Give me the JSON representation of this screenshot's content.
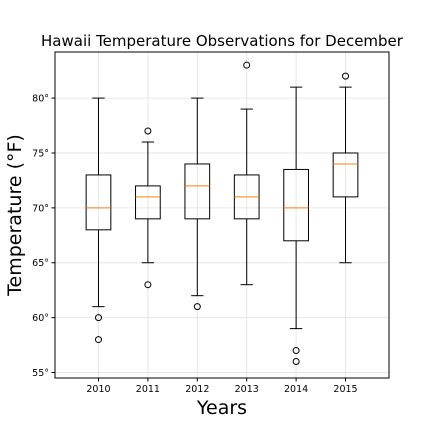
{
  "chart_data": {
    "type": "box",
    "title": "Hawaii Temperature Observations for December",
    "xlabel": "Years",
    "ylabel": "Temperature (°F)",
    "ylim": [
      54.5,
      84.2
    ],
    "grid": true,
    "y_ticks": [
      {
        "value": 55,
        "label": "55°"
      },
      {
        "value": 60,
        "label": "60°"
      },
      {
        "value": 65,
        "label": "65°"
      },
      {
        "value": 70,
        "label": "70°"
      },
      {
        "value": 75,
        "label": "75°"
      },
      {
        "value": 80,
        "label": "80°"
      }
    ],
    "categories": [
      "2010",
      "2011",
      "2012",
      "2013",
      "2014",
      "2015"
    ],
    "boxes": [
      {
        "label": "2010",
        "whislo": 61,
        "q1": 68,
        "med": 70,
        "q3": 73,
        "whishi": 80,
        "fliers": [
          60,
          58
        ]
      },
      {
        "label": "2011",
        "whislo": 65,
        "q1": 69,
        "med": 71,
        "q3": 72,
        "whishi": 76,
        "fliers": [
          77,
          63
        ]
      },
      {
        "label": "2012",
        "whislo": 62,
        "q1": 69,
        "med": 72,
        "q3": 74,
        "whishi": 80,
        "fliers": [
          61
        ]
      },
      {
        "label": "2013",
        "whislo": 63,
        "q1": 69,
        "med": 71,
        "q3": 73,
        "whishi": 79,
        "fliers": [
          83
        ]
      },
      {
        "label": "2014",
        "whislo": 59,
        "q1": 67,
        "med": 70,
        "q3": 73.5,
        "whishi": 81,
        "fliers": [
          57,
          56
        ]
      },
      {
        "label": "2015",
        "whislo": 65,
        "q1": 71,
        "med": 74,
        "q3": 75,
        "whishi": 81,
        "fliers": [
          82
        ]
      }
    ],
    "colors": {
      "box": "#000000",
      "median": "#ff7f0e",
      "grid": "#e6e6e6",
      "frame": "#000000"
    }
  }
}
